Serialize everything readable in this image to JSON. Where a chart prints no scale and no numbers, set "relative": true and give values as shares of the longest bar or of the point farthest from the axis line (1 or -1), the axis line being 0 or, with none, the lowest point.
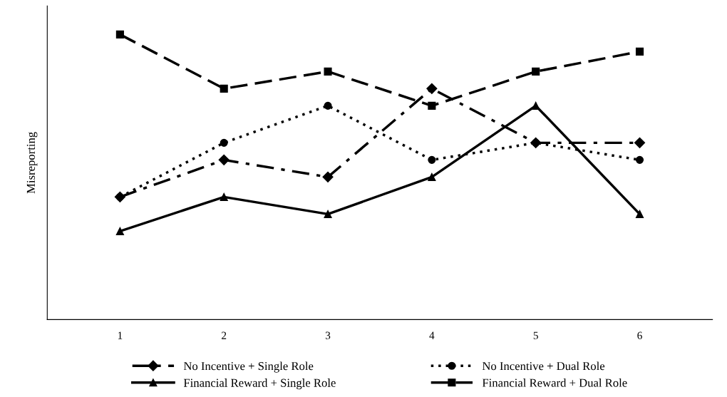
{
  "chart_data": {
    "type": "line",
    "ylabel": "Misreporting",
    "categories": [
      "1",
      "2",
      "3",
      "4",
      "5",
      "6"
    ],
    "relative": true,
    "legend": "bottom",
    "grid": false,
    "series": [
      {
        "name": "No Incentive + Single Role",
        "color": "#000000",
        "marker": "diamond",
        "line_style": "dashdot",
        "values": [
          0.43,
          0.56,
          0.5,
          0.81,
          0.62,
          0.62
        ]
      },
      {
        "name": "No Incentive + Dual Role",
        "color": "#000000",
        "marker": "circle",
        "line_style": "dotted",
        "values": [
          0.43,
          0.62,
          0.75,
          0.56,
          0.62,
          0.56
        ]
      },
      {
        "name": "Financial Reward + Single Role",
        "color": "#000000",
        "marker": "triangle",
        "line_style": "solid",
        "values": [
          0.31,
          0.43,
          0.37,
          0.5,
          0.75,
          0.37
        ]
      },
      {
        "name": "Financial Reward + Dual Role",
        "color": "#000000",
        "marker": "square",
        "line_style": "dashed",
        "values": [
          1,
          0.81,
          0.87,
          0.75,
          0.87,
          0.94
        ]
      }
    ]
  }
}
